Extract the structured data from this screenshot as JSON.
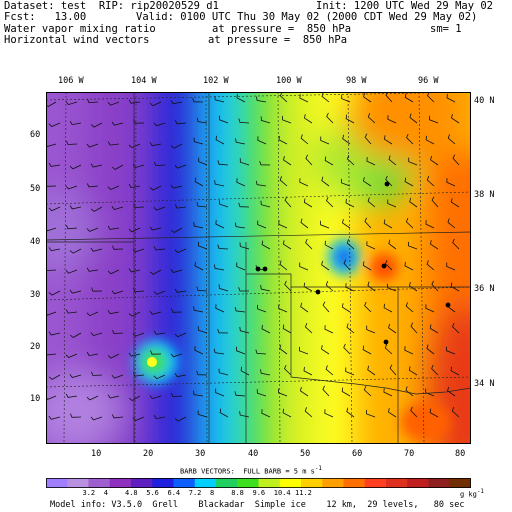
{
  "header": {
    "left_line1": "Dataset: test  RIP: rip20020529 d1",
    "left_line2": "Fcst:   13.00",
    "left_line3": "Water vapor mixing ratio",
    "left_line4": "Horizontal wind vectors",
    "right_line1": "Init: 1200 UTC Wed 29 May 02",
    "right_line2": "Valid: 0100 UTC Thu 30 May 02 (2000 CDT Wed 29 May 02)",
    "mid_line3": "at pressure =  850 hPa",
    "right_line3": "sm= 1",
    "mid_line4": "at pressure =  850 hPa"
  },
  "map": {
    "lon_labels": [
      "106 W",
      "104 W",
      "102 W",
      "100 W",
      "98 W",
      "96 W"
    ],
    "lat_labels": [
      "40 N",
      "38 N",
      "36 N",
      "34 N"
    ],
    "y_grid_labels": [
      "60",
      "50",
      "40",
      "30",
      "20",
      "10"
    ],
    "x_grid_labels": [
      "10",
      "20",
      "30",
      "40",
      "50",
      "60",
      "70",
      "80"
    ]
  },
  "barb_caption": "BARB VECTORS:  FULL BARB = 5 m s",
  "barb_caption_sup": "-1",
  "colorbar": {
    "labels": [
      "3.2",
      "4",
      "4.8",
      "5.6",
      "6.4",
      "7.2",
      "8",
      "8.8",
      "9.6",
      "10.4",
      "11.2"
    ],
    "unit": "g kg",
    "unit_sup": "-1",
    "colors": [
      "#9f7fff",
      "#b98fdf",
      "#9f5fcf",
      "#8f2fbf",
      "#5f1fc0",
      "#1f1fdf",
      "#0f5fff",
      "#00cfff",
      "#1fcf5f",
      "#3fdf1f",
      "#bfef1f",
      "#ffff00",
      "#ffcf00",
      "#ff9f00",
      "#ff6f00",
      "#ff3f1f",
      "#df2f1f",
      "#bf1f1f",
      "#8f1f1f",
      "#6f2f00"
    ]
  },
  "footer": "Model info: V3.5.0  Grell    Blackadar  Simple ice    12 km,  29 levels,   80 sec"
}
